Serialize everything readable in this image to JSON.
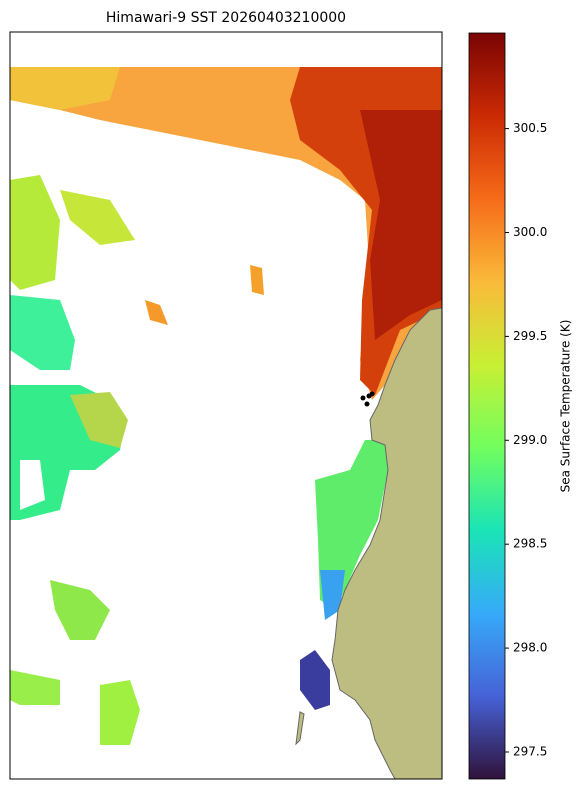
{
  "chart_data": {
    "type": "map",
    "title": "Himawari-9 SST 20260403210000",
    "colorbar_label": "Sea Surface Temperature (K)",
    "colormap": [
      "#30123b",
      "#4662d7",
      "#36aaf9",
      "#1ae4b6",
      "#72fe5e",
      "#c8ef34",
      "#faba39",
      "#f66b19",
      "#cb2a04",
      "#7a0403"
    ],
    "clim": [
      297.37,
      300.96
    ],
    "cticks": [
      297.5,
      {
        "value": 298,
        "label": "298.0"
      },
      298.5,
      {
        "value": 299,
        "label": "299.0"
      },
      299.5,
      {
        "value": 300,
        "label": "300.0"
      },
      300.5
    ]
  }
}
